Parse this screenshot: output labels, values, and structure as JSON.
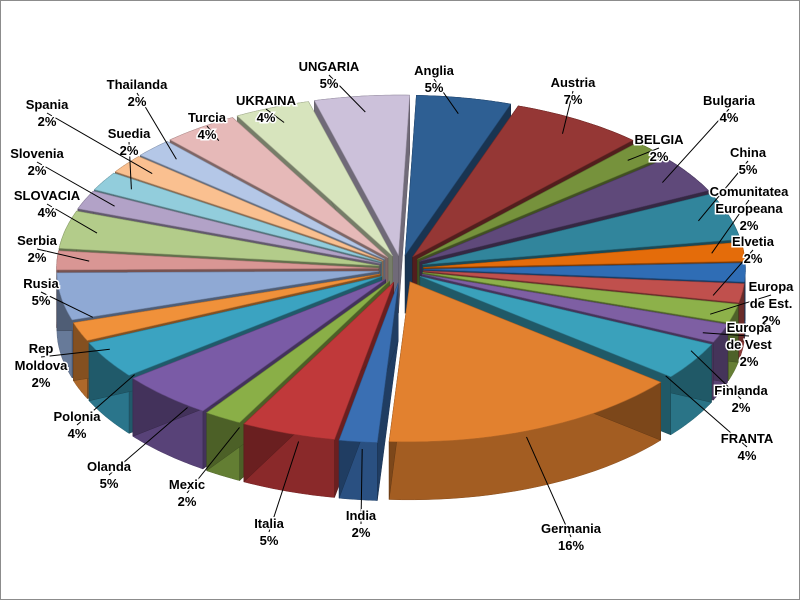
{
  "chart_data": {
    "type": "pie",
    "title": "",
    "legend": "none",
    "unit": "%",
    "slices": [
      {
        "name": "Anglia",
        "value": 5,
        "label": "5%",
        "color": "#2E5F93"
      },
      {
        "name": "Austria",
        "value": 7,
        "label": "7%",
        "color": "#953735"
      },
      {
        "name": "BELGIA",
        "value": 2,
        "label": "2%",
        "color": "#76923C"
      },
      {
        "name": "Bulgaria",
        "value": 4,
        "label": "4%",
        "color": "#5F497A"
      },
      {
        "name": "China",
        "value": 5,
        "label": "5%",
        "color": "#31859C"
      },
      {
        "name": "Comunitatea Europeana",
        "value": 2,
        "label": "2%",
        "color": "#E46C0A"
      },
      {
        "name": "Elvetia",
        "value": 2,
        "label": "2%",
        "color": "#2F6DB5"
      },
      {
        "name": "Europa de Est.",
        "value": 2,
        "label": "2%",
        "color": "#C0504D"
      },
      {
        "name": "Europa de Vest",
        "value": 2,
        "label": "2%",
        "color": "#8DB14A"
      },
      {
        "name": "Finlanda",
        "value": 2,
        "label": "2%",
        "color": "#7E5FA3"
      },
      {
        "name": "FRANTA",
        "value": 4,
        "label": "4%",
        "color": "#3AA1BB"
      },
      {
        "name": "Germania",
        "value": 16,
        "label": "16%",
        "color": "#E2812F"
      },
      {
        "name": "India",
        "value": 2,
        "label": "2%",
        "color": "#3A6FB3"
      },
      {
        "name": "Italia",
        "value": 5,
        "label": "5%",
        "color": "#C0393A"
      },
      {
        "name": "Mexic",
        "value": 2,
        "label": "2%",
        "color": "#8AAF47"
      },
      {
        "name": "Olanda",
        "value": 5,
        "label": "5%",
        "color": "#7A5BA6"
      },
      {
        "name": "Polonia",
        "value": 4,
        "label": "4%",
        "color": "#3BA3C1"
      },
      {
        "name": "Rep Moldova",
        "value": 2,
        "label": "2%",
        "color": "#F0913A"
      },
      {
        "name": "Rusia",
        "value": 5,
        "label": "5%",
        "color": "#8FA9D4"
      },
      {
        "name": "Serbia",
        "value": 2,
        "label": "2%",
        "color": "#D99694"
      },
      {
        "name": "SLOVACIA",
        "value": 4,
        "label": "4%",
        "color": "#B3CC8A"
      },
      {
        "name": "Slovenia",
        "value": 2,
        "label": "2%",
        "color": "#B2A2C7"
      },
      {
        "name": "Suedia",
        "value": 2,
        "label": "2%",
        "color": "#92CDDC"
      },
      {
        "name": "Spania",
        "value": 2,
        "label": "2%",
        "color": "#FAC090"
      },
      {
        "name": "Thailanda",
        "value": 2,
        "label": "2%",
        "color": "#B4C7E7"
      },
      {
        "name": "Turcia",
        "value": 4,
        "label": "4%",
        "color": "#E6B9B8"
      },
      {
        "name": "UKRAINA",
        "value": 4,
        "label": "4%",
        "color": "#D7E4BD"
      },
      {
        "name": "UNGARIA",
        "value": 5,
        "label": "5%",
        "color": "#CCC1DA"
      }
    ]
  }
}
